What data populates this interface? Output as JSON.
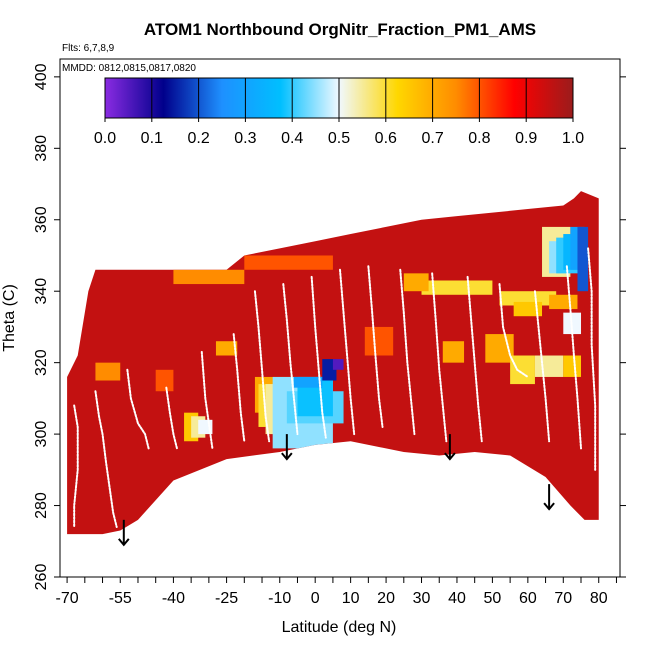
{
  "chart_data": {
    "type": "heatmap",
    "title": "ATOM1 Northbound OrgNitr_Fraction_PM1_AMS",
    "flights_note": "Flts: 6,7,8,9",
    "dates_note": "MMDD: 0812,0815,0817,0820",
    "xlabel": "Latitude (deg N)",
    "ylabel": "Theta (C)",
    "xlim": [
      -72,
      86
    ],
    "ylim": [
      260,
      405
    ],
    "x_ticks": [
      -70,
      -55,
      -40,
      -25,
      -10,
      0,
      10,
      20,
      30,
      40,
      50,
      60,
      70,
      80
    ],
    "x_tick_labels": [
      "-70",
      "-55",
      "-40",
      "-25",
      "-10",
      "0",
      "10",
      "20",
      "30",
      "40",
      "50",
      "60",
      "70",
      "80"
    ],
    "x_minor_ticks": [
      -65,
      -60,
      -50,
      -45,
      -35,
      -30,
      -20,
      -15,
      -5,
      5,
      15,
      25,
      35,
      45,
      55,
      65,
      75,
      85
    ],
    "y_ticks": [
      260,
      280,
      300,
      320,
      340,
      360,
      380,
      400
    ],
    "y_tick_labels": [
      "260",
      "280",
      "300",
      "320",
      "340",
      "360",
      "380",
      "400"
    ],
    "colorbar": {
      "range": [
        0.0,
        1.0
      ],
      "tick_values": [
        0.0,
        0.1,
        0.2,
        0.3,
        0.4,
        0.5,
        0.6,
        0.7,
        0.8,
        0.9,
        1.0
      ],
      "tick_labels": [
        "0.0",
        "0.1",
        "0.2",
        "0.3",
        "0.4",
        "0.5",
        "0.6",
        "0.7",
        "0.8",
        "0.9",
        "1.0"
      ],
      "colors": [
        "#8a2be2",
        "#00008b",
        "#1e90ff",
        "#00bfff",
        "#f0f8ff",
        "#ffd700",
        "#ff8c00",
        "#ff0000",
        "#9b1c1c"
      ]
    },
    "background_value": 0.95,
    "envelope": {
      "top": [
        [
          -70,
          316
        ],
        [
          -67,
          322
        ],
        [
          -64,
          340
        ],
        [
          -62,
          346
        ],
        [
          -55,
          346
        ],
        [
          -25,
          346
        ],
        [
          -20,
          350
        ],
        [
          -10,
          352
        ],
        [
          0,
          354
        ],
        [
          10,
          356
        ],
        [
          20,
          358
        ],
        [
          30,
          360
        ],
        [
          40,
          361
        ],
        [
          50,
          362
        ],
        [
          60,
          363
        ],
        [
          70,
          364
        ],
        [
          73,
          366
        ],
        [
          75,
          368
        ],
        [
          80,
          366
        ]
      ],
      "bottom": [
        [
          80,
          276
        ],
        [
          76,
          276
        ],
        [
          72,
          280
        ],
        [
          65,
          288
        ],
        [
          55,
          294
        ],
        [
          45,
          295
        ],
        [
          35,
          294
        ],
        [
          25,
          295
        ],
        [
          10,
          298
        ],
        [
          0,
          297
        ],
        [
          -10,
          295
        ],
        [
          -25,
          293
        ],
        [
          -40,
          287
        ],
        [
          -50,
          276
        ],
        [
          -55,
          273
        ],
        [
          -60,
          272
        ],
        [
          -70,
          272
        ]
      ]
    },
    "cells": [
      {
        "x": [
          -17,
          -6
        ],
        "y": [
          306,
          316
        ],
        "value": 0.7
      },
      {
        "x": [
          -16,
          -7
        ],
        "y": [
          302,
          314
        ],
        "value": 0.6
      },
      {
        "x": [
          -14,
          -8
        ],
        "y": [
          300,
          314
        ],
        "value": 0.55
      },
      {
        "x": [
          -12,
          5
        ],
        "y": [
          296,
          316
        ],
        "value": 0.45
      },
      {
        "x": [
          -8,
          8
        ],
        "y": [
          303,
          312
        ],
        "value": 0.42
      },
      {
        "x": [
          -5,
          5
        ],
        "y": [
          305,
          316
        ],
        "value": 0.38
      },
      {
        "x": [
          -6,
          2
        ],
        "y": [
          313,
          316
        ],
        "value": 0.3
      },
      {
        "x": [
          2,
          6
        ],
        "y": [
          315,
          321
        ],
        "value": 0.15
      },
      {
        "x": [
          5,
          8
        ],
        "y": [
          318,
          321
        ],
        "value": 0.05
      },
      {
        "x": [
          -37,
          -33
        ],
        "y": [
          298,
          306
        ],
        "value": 0.65
      },
      {
        "x": [
          -35,
          -31
        ],
        "y": [
          299,
          305
        ],
        "value": 0.55
      },
      {
        "x": [
          -33,
          -29
        ],
        "y": [
          300,
          304
        ],
        "value": 0.5
      },
      {
        "x": [
          -62,
          -55
        ],
        "y": [
          315,
          320
        ],
        "value": 0.75
      },
      {
        "x": [
          -28,
          -22
        ],
        "y": [
          322,
          326
        ],
        "value": 0.7
      },
      {
        "x": [
          -40,
          -20
        ],
        "y": [
          342,
          346
        ],
        "value": 0.75
      },
      {
        "x": [
          -20,
          5
        ],
        "y": [
          346,
          350
        ],
        "value": 0.8
      },
      {
        "x": [
          30,
          50
        ],
        "y": [
          339,
          343
        ],
        "value": 0.6
      },
      {
        "x": [
          52,
          68
        ],
        "y": [
          336,
          340
        ],
        "value": 0.6
      },
      {
        "x": [
          56,
          64
        ],
        "y": [
          333,
          337
        ],
        "value": 0.65
      },
      {
        "x": [
          64,
          72
        ],
        "y": [
          344,
          358
        ],
        "value": 0.55
      },
      {
        "x": [
          66,
          72
        ],
        "y": [
          345,
          354
        ],
        "value": 0.45
      },
      {
        "x": [
          68,
          75
        ],
        "y": [
          345,
          355
        ],
        "value": 0.4
      },
      {
        "x": [
          70,
          76
        ],
        "y": [
          346,
          356
        ],
        "value": 0.35
      },
      {
        "x": [
          72,
          76
        ],
        "y": [
          346,
          358
        ],
        "value": 0.3
      },
      {
        "x": [
          74,
          77
        ],
        "y": [
          340,
          358
        ],
        "value": 0.2
      },
      {
        "x": [
          66,
          74
        ],
        "y": [
          335,
          339
        ],
        "value": 0.7
      },
      {
        "x": [
          70,
          75
        ],
        "y": [
          328,
          334
        ],
        "value": 0.5
      },
      {
        "x": [
          48,
          56
        ],
        "y": [
          320,
          328
        ],
        "value": 0.7
      },
      {
        "x": [
          55,
          62
        ],
        "y": [
          314,
          322
        ],
        "value": 0.6
      },
      {
        "x": [
          62,
          70
        ],
        "y": [
          316,
          322
        ],
        "value": 0.55
      },
      {
        "x": [
          70,
          75
        ],
        "y": [
          316,
          322
        ],
        "value": 0.65
      },
      {
        "x": [
          36,
          42
        ],
        "y": [
          320,
          326
        ],
        "value": 0.7
      },
      {
        "x": [
          25,
          32
        ],
        "y": [
          340,
          345
        ],
        "value": 0.7
      },
      {
        "x": [
          14,
          22
        ],
        "y": [
          322,
          330
        ],
        "value": 0.8
      },
      {
        "x": [
          -45,
          -40
        ],
        "y": [
          312,
          318
        ],
        "value": 0.8
      }
    ],
    "flight_track_color": "#ffffff",
    "flight_track": [
      [
        [
          -68,
          308
        ],
        [
          -67,
          302
        ],
        [
          -67,
          290
        ],
        [
          -68,
          280
        ],
        [
          -68,
          274
        ]
      ],
      [
        [
          -62,
          312
        ],
        [
          -61,
          305
        ],
        [
          -60,
          300
        ],
        [
          -59,
          292
        ],
        [
          -58,
          285
        ],
        [
          -57,
          278
        ],
        [
          -56,
          274
        ]
      ],
      [
        [
          -53,
          318
        ],
        [
          -52,
          310
        ],
        [
          -50,
          303
        ],
        [
          -48,
          300
        ],
        [
          -47,
          296
        ]
      ],
      [
        [
          -42,
          313
        ],
        [
          -41,
          306
        ],
        [
          -40,
          300
        ],
        [
          -39,
          296
        ]
      ],
      [
        [
          -32,
          323
        ],
        [
          -31,
          310
        ],
        [
          -30,
          303
        ],
        [
          -29,
          296
        ]
      ],
      [
        [
          -23,
          328
        ],
        [
          -22,
          318
        ],
        [
          -21,
          306
        ],
        [
          -20,
          298
        ]
      ],
      [
        [
          -17,
          340
        ],
        [
          -16,
          330
        ],
        [
          -15,
          318
        ],
        [
          -14,
          305
        ],
        [
          -13,
          298
        ]
      ],
      [
        [
          -9,
          342
        ],
        [
          -8,
          332
        ],
        [
          -7,
          320
        ],
        [
          -6,
          310
        ],
        [
          -5,
          300
        ]
      ],
      [
        [
          -1,
          344
        ],
        [
          0,
          330
        ],
        [
          1,
          318
        ],
        [
          2,
          306
        ],
        [
          3,
          299
        ]
      ],
      [
        [
          7,
          346
        ],
        [
          8,
          334
        ],
        [
          9,
          322
        ],
        [
          10,
          310
        ],
        [
          11,
          300
        ]
      ],
      [
        [
          15,
          347
        ],
        [
          16,
          335
        ],
        [
          17,
          322
        ],
        [
          18,
          310
        ],
        [
          19,
          302
        ]
      ],
      [
        [
          24,
          346
        ],
        [
          25,
          334
        ],
        [
          26,
          320
        ],
        [
          27,
          310
        ],
        [
          28,
          300
        ]
      ],
      [
        [
          33,
          345
        ],
        [
          34,
          332
        ],
        [
          35,
          318
        ],
        [
          36,
          308
        ],
        [
          37,
          298
        ]
      ],
      [
        [
          43,
          344
        ],
        [
          44,
          332
        ],
        [
          45,
          320
        ],
        [
          46,
          308
        ],
        [
          47,
          298
        ]
      ],
      [
        [
          52,
          342
        ],
        [
          53,
          330
        ],
        [
          55,
          322
        ],
        [
          57,
          318
        ],
        [
          60,
          316
        ]
      ],
      [
        [
          62,
          340
        ],
        [
          63,
          330
        ],
        [
          64,
          320
        ],
        [
          65,
          310
        ],
        [
          66,
          298
        ]
      ],
      [
        [
          71,
          347
        ],
        [
          72,
          335
        ],
        [
          73,
          322
        ],
        [
          74,
          310
        ],
        [
          75,
          296
        ]
      ],
      [
        [
          77,
          352
        ],
        [
          78,
          340
        ],
        [
          78,
          325
        ],
        [
          79,
          308
        ],
        [
          79,
          290
        ]
      ]
    ],
    "arrows": [
      {
        "x": -54,
        "y_top": 276,
        "y_bottom": 269
      },
      {
        "x": -8,
        "y_top": 300,
        "y_bottom": 293
      },
      {
        "x": 38,
        "y_top": 300,
        "y_bottom": 293
      },
      {
        "x": 66,
        "y_top": 286,
        "y_bottom": 279
      }
    ]
  }
}
